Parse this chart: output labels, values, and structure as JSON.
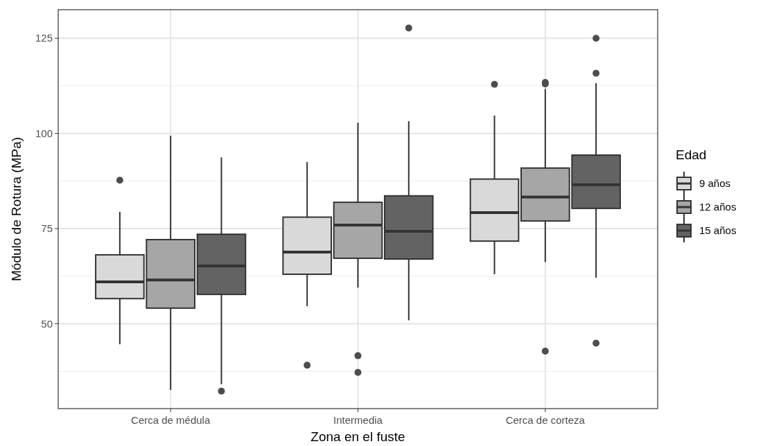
{
  "chart_data": {
    "type": "box",
    "xlabel": "Zona en el fuste",
    "ylabel": "Módulo de Rotura (MPa)",
    "legend_title": "Edad",
    "legend": "right",
    "grid": true,
    "categories": [
      "Cerca de médula",
      "Intermedia",
      "Cerca de corteza"
    ],
    "ylim": [
      27.7,
      132.5
    ],
    "yticks": [
      50,
      75,
      100,
      125
    ],
    "series": [
      {
        "name": "9 años",
        "color": "#d9d9d9",
        "boxes": [
          {
            "low": 44.6,
            "q1": 56.6,
            "median": 61,
            "q3": 68.1,
            "high": 79.4,
            "outliers": [
              87.7
            ]
          },
          {
            "low": 54.6,
            "q1": 63,
            "median": 68.8,
            "q3": 78,
            "high": 92.5,
            "outliers": [
              39.1
            ]
          },
          {
            "low": 63,
            "q1": 71.7,
            "median": 79.2,
            "q3": 88,
            "high": 104.7,
            "outliers": [
              112.9
            ]
          }
        ]
      },
      {
        "name": "12 años",
        "color": "#a6a6a6",
        "boxes": [
          {
            "low": 32.6,
            "q1": 54.1,
            "median": 61.5,
            "q3": 72.1,
            "high": 99.4
          },
          {
            "low": 59.5,
            "q1": 67.2,
            "median": 75.9,
            "q3": 81.9,
            "high": 102.8,
            "outliers": [
              41.6,
              37.2
            ]
          },
          {
            "low": 66.2,
            "q1": 77,
            "median": 83.3,
            "q3": 90.9,
            "high": 111.7,
            "outliers": [
              113,
              113.4,
              42.8
            ]
          }
        ]
      },
      {
        "name": "15 años",
        "color": "#636363",
        "boxes": [
          {
            "low": 34.1,
            "q1": 57.7,
            "median": 65.2,
            "q3": 73.5,
            "high": 93.7,
            "outliers": [
              32.3
            ]
          },
          {
            "low": 50.9,
            "q1": 67,
            "median": 74.3,
            "q3": 83.6,
            "high": 103.2,
            "outliers": [
              127.7
            ]
          },
          {
            "low": 62.1,
            "q1": 80.3,
            "median": 86.5,
            "q3": 94.3,
            "high": 113.2,
            "outliers": [
              125,
              115.8,
              44.9
            ]
          }
        ]
      }
    ]
  }
}
